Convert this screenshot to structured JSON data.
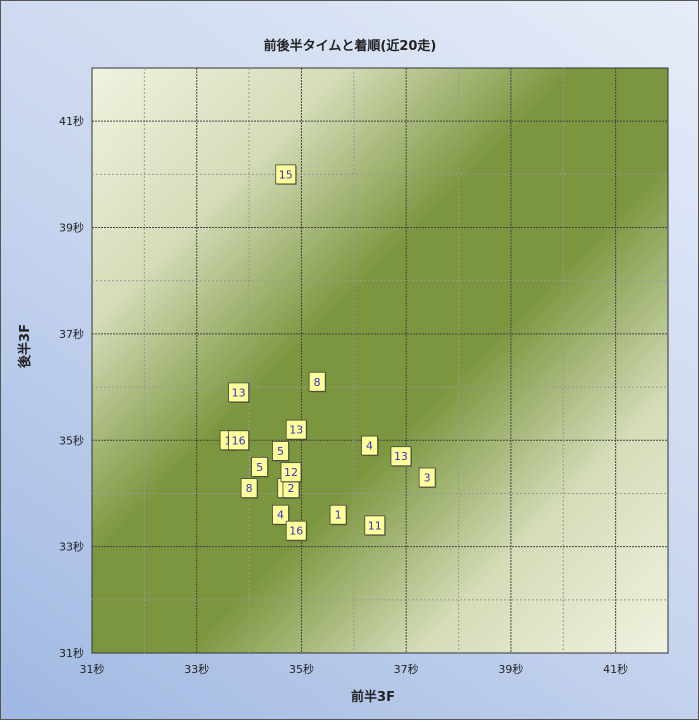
{
  "chart_data": {
    "type": "scatter",
    "title": "前後半タイムと着順(近20走)",
    "xlabel": "前半3F",
    "ylabel": "後半3F",
    "xlim": [
      31,
      42
    ],
    "ylim": [
      31,
      42
    ],
    "x_ticks": [
      "31秒",
      "33秒",
      "35秒",
      "37秒",
      "39秒",
      "41秒"
    ],
    "y_ticks": [
      "31秒",
      "33秒",
      "35秒",
      "37秒",
      "39秒",
      "41秒"
    ],
    "grid": true,
    "legend": "none",
    "colors": {
      "plot_light": "#f0f3e0",
      "plot_dark": "#77933c",
      "label_box": "#ffff99",
      "label_text": "#3333cc"
    },
    "points": [
      {
        "x": 34.7,
        "y": 40.0,
        "label": "15"
      },
      {
        "x": 33.8,
        "y": 35.9,
        "label": "13"
      },
      {
        "x": 35.3,
        "y": 36.1,
        "label": "8"
      },
      {
        "x": 33.6,
        "y": 35.0,
        "label": "1"
      },
      {
        "x": 33.8,
        "y": 35.0,
        "label": "16"
      },
      {
        "x": 34.9,
        "y": 35.2,
        "label": "13"
      },
      {
        "x": 34.6,
        "y": 34.8,
        "label": "5"
      },
      {
        "x": 36.3,
        "y": 34.9,
        "label": "4"
      },
      {
        "x": 36.9,
        "y": 34.7,
        "label": "13"
      },
      {
        "x": 34.2,
        "y": 34.5,
        "label": "5"
      },
      {
        "x": 37.4,
        "y": 34.3,
        "label": "3"
      },
      {
        "x": 34.0,
        "y": 34.1,
        "label": "8"
      },
      {
        "x": 34.7,
        "y": 34.1,
        "label": "1"
      },
      {
        "x": 34.8,
        "y": 34.1,
        "label": "2"
      },
      {
        "x": 34.8,
        "y": 34.4,
        "label": "12"
      },
      {
        "x": 34.6,
        "y": 33.6,
        "label": "4"
      },
      {
        "x": 35.7,
        "y": 33.6,
        "label": "1"
      },
      {
        "x": 36.4,
        "y": 33.4,
        "label": "11"
      },
      {
        "x": 34.9,
        "y": 33.3,
        "label": "16"
      }
    ]
  }
}
